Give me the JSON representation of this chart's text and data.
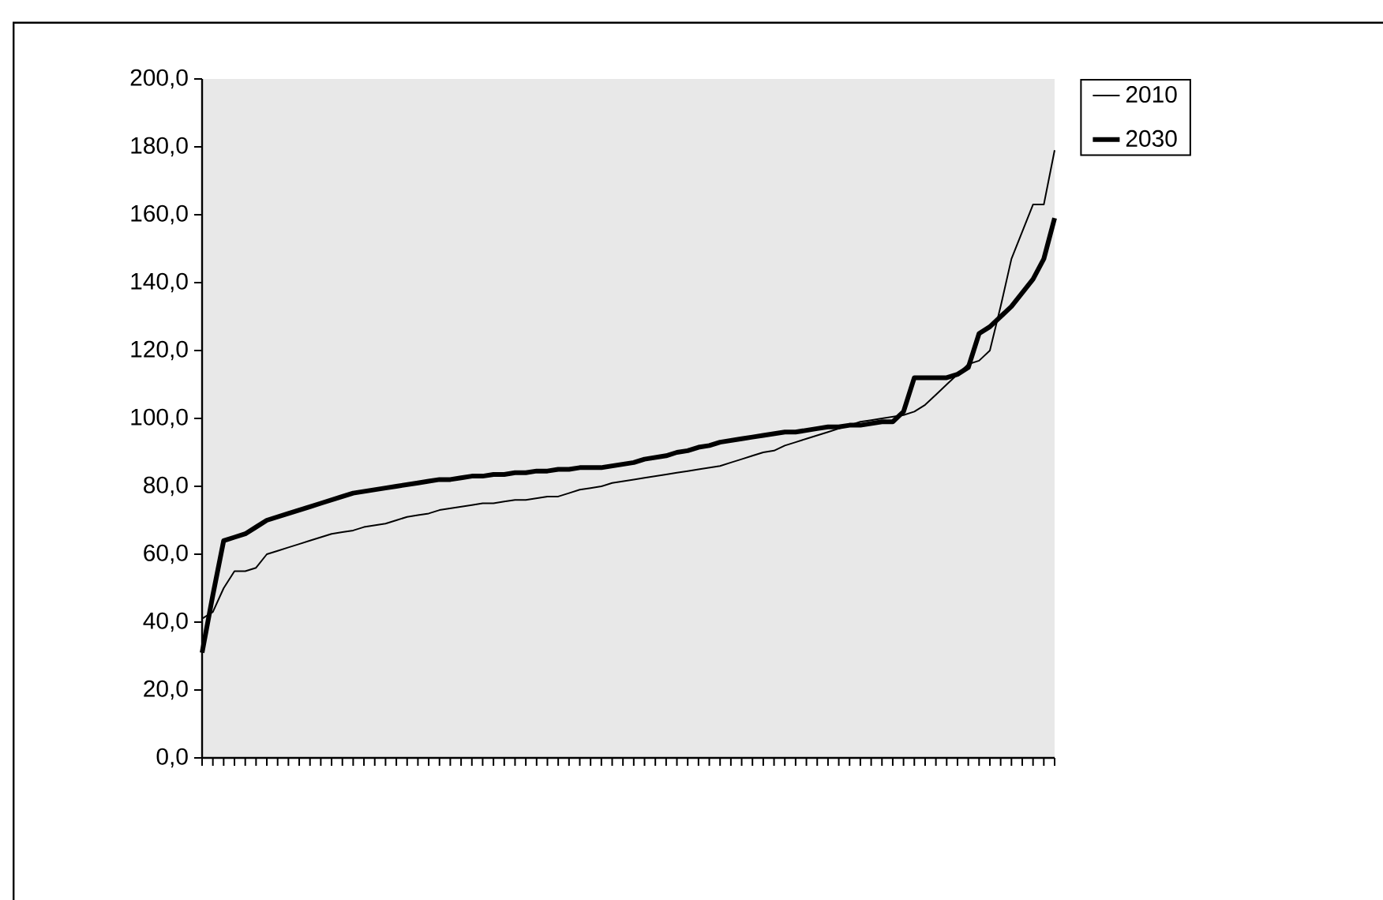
{
  "chart_data": {
    "type": "line",
    "categories": [
      null,
      null,
      null,
      null,
      null,
      null,
      null,
      null,
      null,
      null,
      null,
      null,
      null,
      null,
      null,
      null,
      null,
      null,
      null,
      null,
      null,
      null,
      null,
      null,
      null,
      null,
      null,
      null,
      null,
      null,
      null,
      null,
      null,
      null,
      null,
      null,
      null,
      null,
      null,
      null,
      null,
      null,
      null,
      null,
      null,
      null,
      null,
      null,
      null,
      null,
      null,
      null,
      null,
      null,
      null,
      null,
      null,
      null,
      null,
      null,
      null,
      null,
      null,
      null,
      null,
      null,
      null,
      null,
      null,
      null,
      null,
      null,
      null,
      null,
      null,
      null,
      null,
      null,
      null,
      null
    ],
    "series": [
      {
        "name": "2010",
        "color": "#000000",
        "values": [
          41,
          43,
          50,
          55,
          55,
          56,
          60,
          61,
          62,
          63,
          64,
          65,
          66,
          66.5,
          67,
          68,
          68.5,
          69,
          70,
          71,
          71.5,
          72,
          73,
          73.5,
          74,
          74.5,
          75,
          75,
          75.5,
          76,
          76,
          76.5,
          77,
          77,
          78,
          79,
          79.5,
          80,
          81,
          81.5,
          82,
          82.5,
          83,
          83.5,
          84,
          84.5,
          85,
          85.5,
          86,
          87,
          88,
          89,
          90,
          90.5,
          92,
          93,
          94,
          95,
          96,
          97,
          98,
          99,
          99.5,
          100,
          100.5,
          101,
          102,
          104,
          107,
          110,
          113,
          116,
          117,
          120,
          133,
          147,
          155,
          163,
          163,
          179
        ]
      },
      {
        "name": "2030",
        "color": "#000000",
        "values": [
          31,
          48,
          64,
          65,
          66,
          68,
          70,
          71,
          72,
          73,
          74,
          75,
          76,
          77,
          78,
          78.5,
          79,
          79.5,
          80,
          80.5,
          81,
          81.5,
          82,
          82,
          82.5,
          83,
          83,
          83.5,
          83.5,
          84,
          84,
          84.5,
          84.5,
          85,
          85,
          85.5,
          85.5,
          85.5,
          86,
          86.5,
          87,
          88,
          88.5,
          89,
          90,
          90.5,
          91.5,
          92,
          93,
          93.5,
          94,
          94.5,
          95,
          95.5,
          96,
          96,
          96.5,
          97,
          97.5,
          97.5,
          98,
          98,
          98.5,
          99,
          99,
          102,
          112,
          112,
          112,
          112,
          113,
          115,
          125,
          127,
          130,
          133,
          137,
          141,
          147,
          159
        ]
      }
    ],
    "ylim": [
      0,
      200
    ],
    "yticks": [
      {
        "value": 0,
        "label": "0,0"
      },
      {
        "value": 20,
        "label": "20,0"
      },
      {
        "value": 40,
        "label": "40,0"
      },
      {
        "value": 60,
        "label": "60,0"
      },
      {
        "value": 80,
        "label": "80,0"
      },
      {
        "value": 100,
        "label": "100,0"
      },
      {
        "value": 120,
        "label": "120,0"
      },
      {
        "value": 140,
        "label": "140,0"
      },
      {
        "value": 160,
        "label": "160,0"
      },
      {
        "value": 180,
        "label": "180,0"
      },
      {
        "value": 200,
        "label": "200,0"
      }
    ],
    "tick_labels": "y",
    "legend": "top right",
    "marker": "none",
    "line_style": "solid"
  }
}
